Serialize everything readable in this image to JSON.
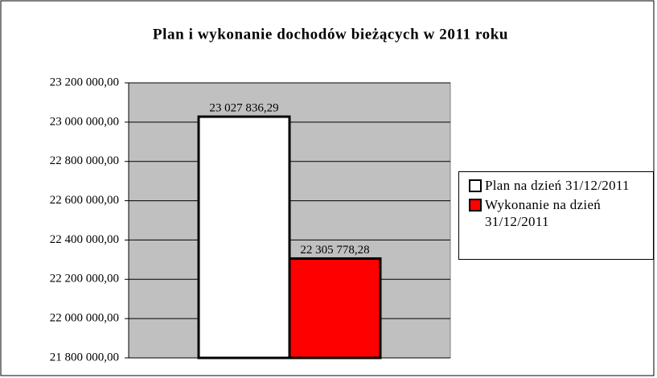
{
  "chart_data": {
    "type": "bar",
    "title": "Plan i wykonanie dochodów bieżących w 2011 roku",
    "categories": [
      null
    ],
    "series": [
      {
        "name": "Plan na dzień 31/12/2011",
        "color": "#ffffff",
        "values": [
          23027836.29
        ],
        "value_labels": [
          "23 027 836,29"
        ]
      },
      {
        "name": "Wykonanie na dzień 31/12/2011",
        "color": "#ff0000",
        "values": [
          22305778.28
        ],
        "value_labels": [
          "22 305 778,28"
        ]
      }
    ],
    "ylim": [
      21800000,
      23200000
    ],
    "yticks": [
      {
        "value": 21800000,
        "label": "21 800 000,00"
      },
      {
        "value": 22000000,
        "label": "22 000 000,00"
      },
      {
        "value": 22200000,
        "label": "22 200 000,00"
      },
      {
        "value": 22400000,
        "label": "22 400 000,00"
      },
      {
        "value": 22600000,
        "label": "22 600 000,00"
      },
      {
        "value": 22800000,
        "label": "22 800 000,00"
      },
      {
        "value": 23000000,
        "label": "23 000 000,00"
      },
      {
        "value": 23200000,
        "label": "23 200 000,00"
      }
    ],
    "grid": true,
    "legend": "right"
  }
}
